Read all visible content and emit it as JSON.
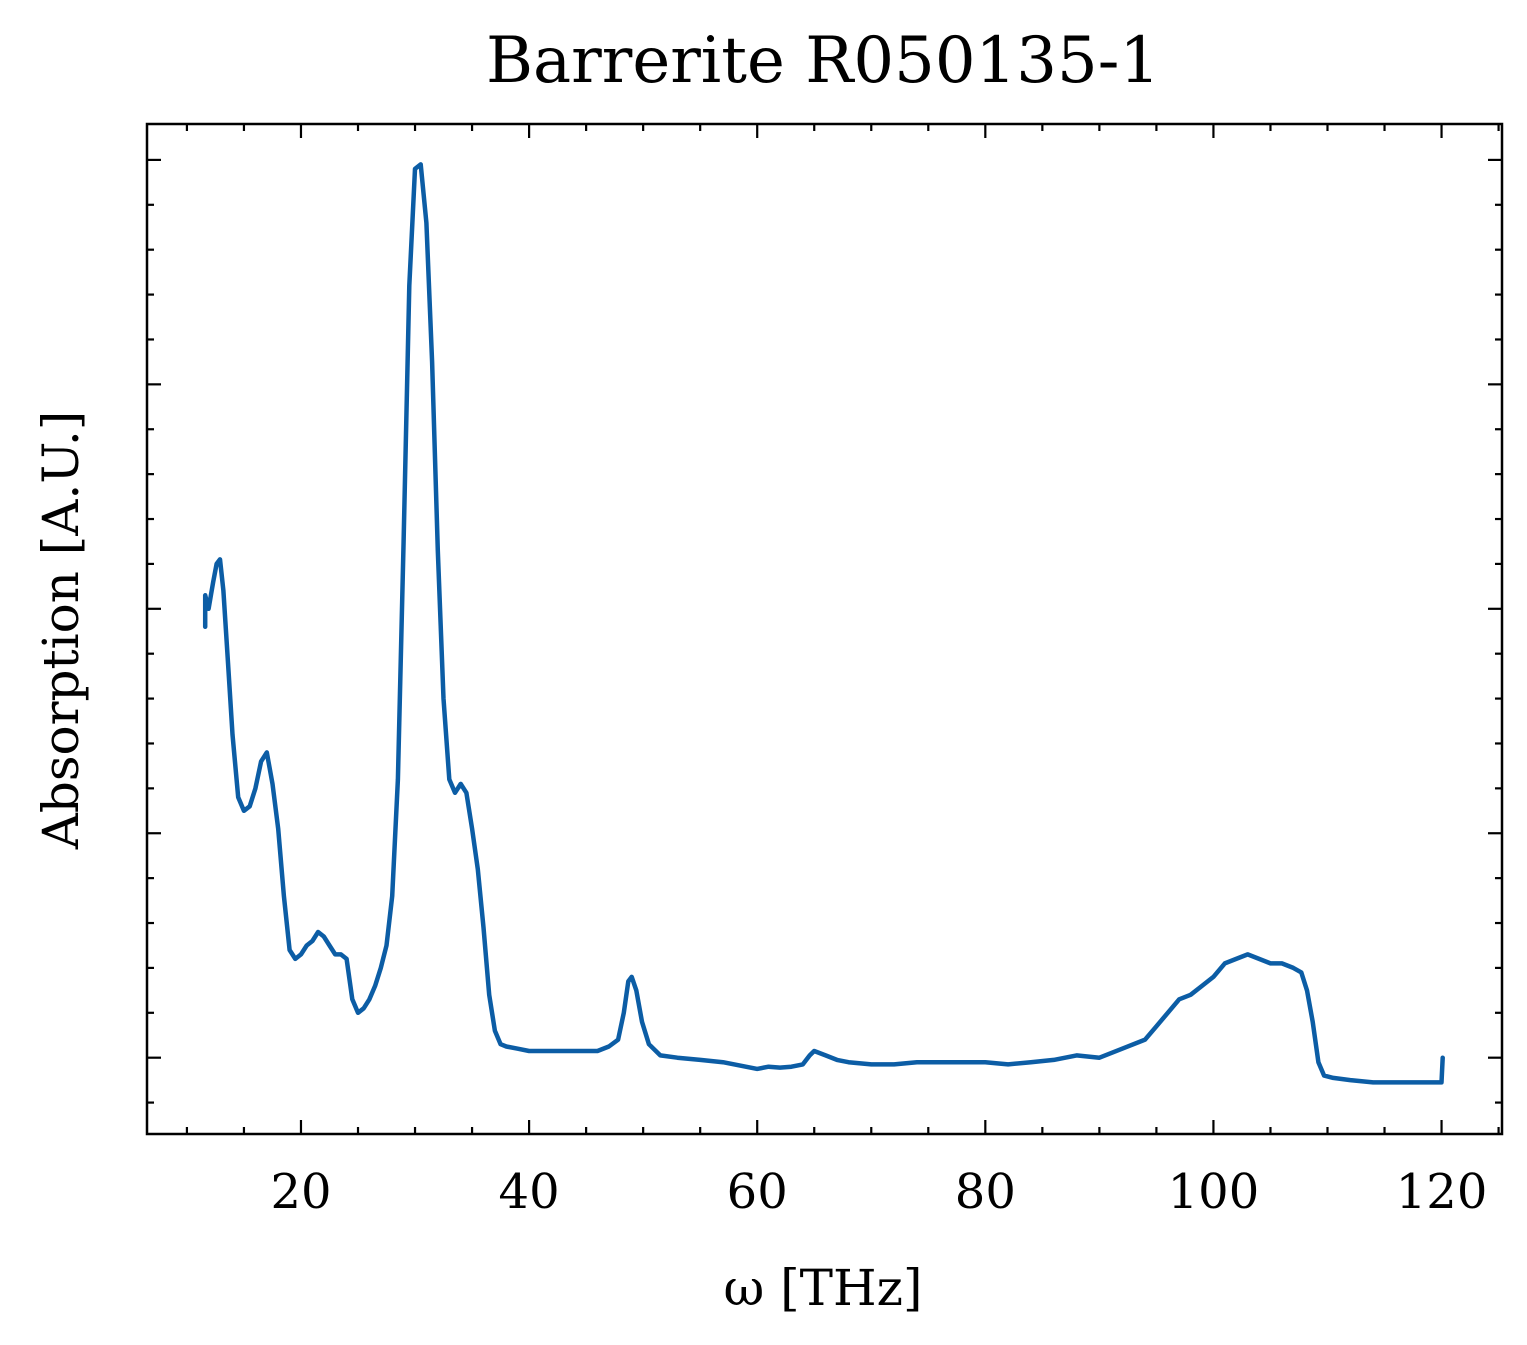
{
  "chart_data": {
    "type": "line",
    "title": "Barrerite R050135-1",
    "xlabel": "ω [THz]",
    "ylabel": "Absorption [A.U.]",
    "xlim": [
      6.5,
      125.3
    ],
    "ylim": [
      -0.17,
      2.08
    ],
    "x_ticks": [
      20,
      40,
      60,
      80,
      100,
      120
    ],
    "x_tick_labels": [
      "20",
      "40",
      "60",
      "80",
      "100",
      "120"
    ],
    "x_minor_step": 5,
    "y_ticks": [
      0,
      0.5,
      1.0,
      1.5,
      2.0
    ],
    "y_minor_step": 0.1,
    "y_tick_labels_shown": false,
    "grid": false,
    "ticks_direction": "in",
    "color": "#0C5DA5",
    "series": [
      {
        "values_xy": [
          [
            11.6,
            0.96
          ],
          [
            11.6,
            1.03
          ],
          [
            11.9,
            1.0
          ],
          [
            12.1,
            1.03
          ],
          [
            12.3,
            1.06
          ],
          [
            12.6,
            1.1
          ],
          [
            12.9,
            1.11
          ],
          [
            13.2,
            1.04
          ],
          [
            13.6,
            0.88
          ],
          [
            14.0,
            0.72
          ],
          [
            14.5,
            0.58
          ],
          [
            15.0,
            0.55
          ],
          [
            15.5,
            0.56
          ],
          [
            16.0,
            0.6
          ],
          [
            16.5,
            0.66
          ],
          [
            17.0,
            0.68
          ],
          [
            17.5,
            0.61
          ],
          [
            18.0,
            0.51
          ],
          [
            18.5,
            0.36
          ],
          [
            19.0,
            0.24
          ],
          [
            19.5,
            0.22
          ],
          [
            20.0,
            0.23
          ],
          [
            20.5,
            0.25
          ],
          [
            21.0,
            0.26
          ],
          [
            21.5,
            0.28
          ],
          [
            22.0,
            0.27
          ],
          [
            22.5,
            0.25
          ],
          [
            23.0,
            0.23
          ],
          [
            23.5,
            0.23
          ],
          [
            24.0,
            0.22
          ],
          [
            24.5,
            0.13
          ],
          [
            25.0,
            0.1
          ],
          [
            25.5,
            0.11
          ],
          [
            26.0,
            0.13
          ],
          [
            26.5,
            0.16
          ],
          [
            27.0,
            0.2
          ],
          [
            27.5,
            0.25
          ],
          [
            28.0,
            0.36
          ],
          [
            28.5,
            0.62
          ],
          [
            29.0,
            1.15
          ],
          [
            29.5,
            1.72
          ],
          [
            30.0,
            1.98
          ],
          [
            30.5,
            1.99
          ],
          [
            31.0,
            1.86
          ],
          [
            31.5,
            1.55
          ],
          [
            32.0,
            1.13
          ],
          [
            32.5,
            0.8
          ],
          [
            33.0,
            0.62
          ],
          [
            33.5,
            0.59
          ],
          [
            34.0,
            0.61
          ],
          [
            34.5,
            0.59
          ],
          [
            35.0,
            0.51
          ],
          [
            35.5,
            0.42
          ],
          [
            36.0,
            0.29
          ],
          [
            36.5,
            0.14
          ],
          [
            37.0,
            0.06
          ],
          [
            37.5,
            0.03
          ],
          [
            38.0,
            0.025
          ],
          [
            39.0,
            0.02
          ],
          [
            40.0,
            0.015
          ],
          [
            42.0,
            0.015
          ],
          [
            44.0,
            0.015
          ],
          [
            46.0,
            0.015
          ],
          [
            47.0,
            0.025
          ],
          [
            47.8,
            0.04
          ],
          [
            48.3,
            0.1
          ],
          [
            48.7,
            0.17
          ],
          [
            49.0,
            0.18
          ],
          [
            49.4,
            0.15
          ],
          [
            49.9,
            0.08
          ],
          [
            50.5,
            0.03
          ],
          [
            51.5,
            0.005
          ],
          [
            53.0,
            0.0
          ],
          [
            55.0,
            -0.005
          ],
          [
            57.0,
            -0.01
          ],
          [
            58.0,
            -0.015
          ],
          [
            59.0,
            -0.02
          ],
          [
            60.0,
            -0.025
          ],
          [
            61.0,
            -0.02
          ],
          [
            62.0,
            -0.022
          ],
          [
            63.0,
            -0.02
          ],
          [
            64.0,
            -0.015
          ],
          [
            64.6,
            0.005
          ],
          [
            65.0,
            0.015
          ],
          [
            66.0,
            0.005
          ],
          [
            67.0,
            -0.005
          ],
          [
            68.0,
            -0.01
          ],
          [
            70.0,
            -0.015
          ],
          [
            72.0,
            -0.015
          ],
          [
            74.0,
            -0.01
          ],
          [
            76.0,
            -0.01
          ],
          [
            78.0,
            -0.01
          ],
          [
            80.0,
            -0.01
          ],
          [
            82.0,
            -0.015
          ],
          [
            84.0,
            -0.01
          ],
          [
            86.0,
            -0.005
          ],
          [
            88.0,
            0.005
          ],
          [
            90.0,
            0.0
          ],
          [
            92.0,
            0.02
          ],
          [
            94.0,
            0.04
          ],
          [
            95.0,
            0.07
          ],
          [
            96.0,
            0.1
          ],
          [
            97.0,
            0.13
          ],
          [
            98.0,
            0.14
          ],
          [
            99.0,
            0.16
          ],
          [
            100.0,
            0.18
          ],
          [
            101.0,
            0.21
          ],
          [
            102.0,
            0.22
          ],
          [
            103.0,
            0.23
          ],
          [
            104.0,
            0.22
          ],
          [
            105.0,
            0.21
          ],
          [
            106.0,
            0.21
          ],
          [
            107.0,
            0.2
          ],
          [
            107.7,
            0.19
          ],
          [
            108.2,
            0.15
          ],
          [
            108.7,
            0.08
          ],
          [
            109.2,
            -0.01
          ],
          [
            109.7,
            -0.04
          ],
          [
            110.5,
            -0.045
          ],
          [
            112.0,
            -0.05
          ],
          [
            114.0,
            -0.055
          ],
          [
            116.0,
            -0.055
          ],
          [
            118.0,
            -0.055
          ],
          [
            119.7,
            -0.055
          ],
          [
            120.0,
            -0.055
          ],
          [
            120.1,
            0.0
          ]
        ]
      }
    ]
  }
}
